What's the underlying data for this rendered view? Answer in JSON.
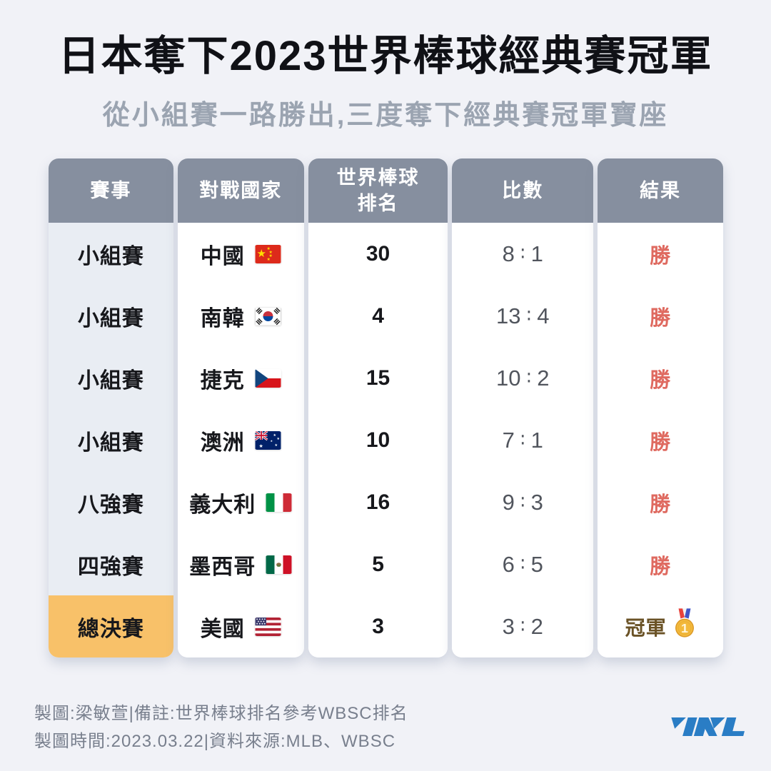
{
  "page": {
    "title": "日本奪下2023世界棒球經典賽冠軍",
    "subtitle": "從小組賽一路勝出,三度奪下經典賽冠軍寶座",
    "background": "#f1f2f7"
  },
  "table": {
    "headers": [
      "賽事",
      "對戰國家",
      "世界棒球\n排名",
      "比數",
      "結果"
    ],
    "rows": [
      {
        "stage": "小組賽",
        "country": "中國",
        "flag": "china",
        "rank": "30",
        "score": "8:1",
        "result": "勝",
        "result_type": "win"
      },
      {
        "stage": "小組賽",
        "country": "南韓",
        "flag": "south-korea",
        "rank": "4",
        "score": "13:4",
        "result": "勝",
        "result_type": "win"
      },
      {
        "stage": "小組賽",
        "country": "捷克",
        "flag": "czechia",
        "rank": "15",
        "score": "10:2",
        "result": "勝",
        "result_type": "win"
      },
      {
        "stage": "小組賽",
        "country": "澳洲",
        "flag": "australia",
        "rank": "10",
        "score": "7:1",
        "result": "勝",
        "result_type": "win"
      },
      {
        "stage": "八強賽",
        "country": "義大利",
        "flag": "italy",
        "rank": "16",
        "score": "9:3",
        "result": "勝",
        "result_type": "win"
      },
      {
        "stage": "四強賽",
        "country": "墨西哥",
        "flag": "mexico",
        "rank": "5",
        "score": "6:5",
        "result": "勝",
        "result_type": "win"
      },
      {
        "stage": "總決賽",
        "country": "美國",
        "flag": "usa",
        "rank": "3",
        "score": "3:2",
        "result": "冠軍",
        "result_type": "champion",
        "medal_icon": "gold-medal"
      }
    ],
    "colors": {
      "header_bg": "#868f9f",
      "stage_column_bg": "#e9edf3",
      "champion_row_bg": "#f8c169",
      "win_text": "#df6a60",
      "champion_text": "#6a5226",
      "score_text": "#51555d"
    }
  },
  "footer": {
    "line1": "製圖:梁敏萱|備註:世界棒球排名參考WBSC排名",
    "line2": "製圖時間:2023.03.22|資料來源:MLB、WBSC",
    "logo_text": "TNL",
    "logo_color": "#2a7dc5"
  },
  "icons": [
    "china-flag",
    "south-korea-flag",
    "czechia-flag",
    "australia-flag",
    "italy-flag",
    "mexico-flag",
    "usa-flag",
    "gold-medal",
    "tnl-logo"
  ],
  "chart_data": {
    "type": "table",
    "title": "日本奪下2023世界棒球經典賽冠軍",
    "subtitle": "從小組賽一路勝出,三度奪下經典賽冠軍寶座",
    "columns": [
      "賽事",
      "對戰國家",
      "世界棒球排名",
      "比數",
      "結果"
    ],
    "rows": [
      [
        "小組賽",
        "中國",
        30,
        "8:1",
        "勝"
      ],
      [
        "小組賽",
        "南韓",
        4,
        "13:4",
        "勝"
      ],
      [
        "小組賽",
        "捷克",
        15,
        "10:2",
        "勝"
      ],
      [
        "小組賽",
        "澳洲",
        10,
        "7:1",
        "勝"
      ],
      [
        "八強賽",
        "義大利",
        16,
        "9:3",
        "勝"
      ],
      [
        "四強賽",
        "墨西哥",
        5,
        "6:5",
        "勝"
      ],
      [
        "總決賽",
        "美國",
        3,
        "3:2",
        "冠軍"
      ]
    ]
  }
}
